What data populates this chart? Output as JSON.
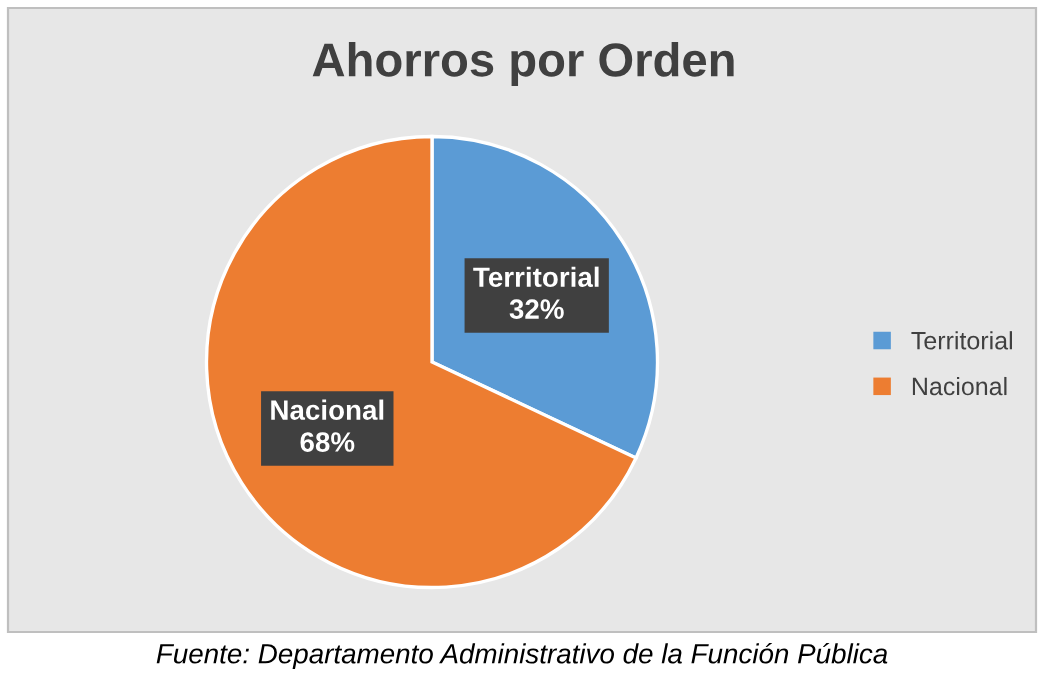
{
  "chart_data": {
    "type": "pie",
    "title": "Ahorros por Orden",
    "categories": [
      "Territorial",
      "Nacional"
    ],
    "values": [
      32,
      68
    ],
    "value_labels": [
      "32%",
      "68%"
    ],
    "colors": [
      "#5b9bd5",
      "#ed7d31"
    ],
    "legend": "right",
    "annotations": [
      "Fuente: Departamento Administrativo de la Función Pública"
    ]
  }
}
